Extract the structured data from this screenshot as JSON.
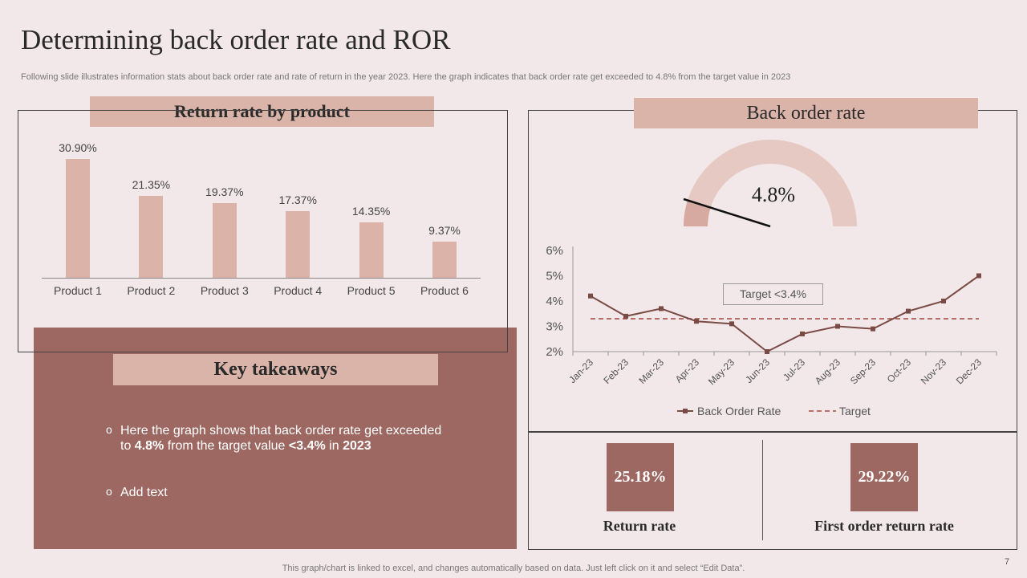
{
  "title": "Determining back order rate and ROR",
  "subtitle": "Following slide illustrates information stats about back order rate and rate of return in the year 2023. Here the graph indicates that back order rate get exceeded to 4.8% from the target value in 2023",
  "return_panel": {
    "heading": "Return rate by product"
  },
  "backorder_panel": {
    "heading": "Back order rate"
  },
  "gauge": {
    "label": "4.8%",
    "value": 4.8,
    "max": 6
  },
  "target_callout": "Target <3.4%",
  "key_takeaways": {
    "heading": "Key takeaways",
    "bullet1": {
      "line1": "Here the graph shows that back order rate get exceeded",
      "to": "to ",
      "value": "4.8%",
      "mid": " from the target value ",
      "target": "<3.4%",
      "in": " in ",
      "year": "2023"
    },
    "bullet2": "Add text"
  },
  "kpis": [
    {
      "value": "25.18%",
      "label": "Return rate"
    },
    {
      "value": "29.22%",
      "label": "First order return rate"
    }
  ],
  "footer": "This graph/chart is linked to excel, and changes automatically based on data. Just left click on it and select “Edit Data”.",
  "page_number": "7",
  "colors": {
    "bar": "#dcb3a8",
    "line": "#7a4b45",
    "target": "#b0625a",
    "accent": "#9c6861"
  },
  "chart_data": [
    {
      "type": "bar",
      "title": "Return rate by product",
      "categories": [
        "Product 1",
        "Product 2",
        "Product 3",
        "Product 4",
        "Product 5",
        "Product 6"
      ],
      "values": [
        30.9,
        21.35,
        19.37,
        17.37,
        14.35,
        9.37
      ],
      "value_labels": [
        "30.90%",
        "21.35%",
        "19.37%",
        "17.37%",
        "14.35%",
        "9.37%"
      ],
      "ylim": [
        0,
        35
      ]
    },
    {
      "type": "line",
      "title": "Back order rate",
      "x": [
        "Jan-23",
        "Feb-23",
        "Mar-23",
        "Apr-23",
        "May-23",
        "Jun-23",
        "Jul-23",
        "Aug-23",
        "Sep-23",
        "Oct-23",
        "Nov-23",
        "Dec-23"
      ],
      "series": [
        {
          "name": "Back Order Rate",
          "values": [
            4.2,
            3.4,
            3.7,
            3.2,
            3.1,
            2.0,
            2.7,
            3.0,
            2.9,
            3.6,
            4.0,
            5.0
          ]
        },
        {
          "name": "Target",
          "values": [
            3.3,
            3.3,
            3.3,
            3.3,
            3.3,
            3.3,
            3.3,
            3.3,
            3.3,
            3.3,
            3.3,
            3.3
          ]
        }
      ],
      "yticks": [
        "2%",
        "3%",
        "4%",
        "5%",
        "6%"
      ],
      "ylim": [
        2,
        6
      ],
      "legend": [
        "Back Order Rate",
        "Target"
      ],
      "legend_position": "bottom"
    }
  ]
}
